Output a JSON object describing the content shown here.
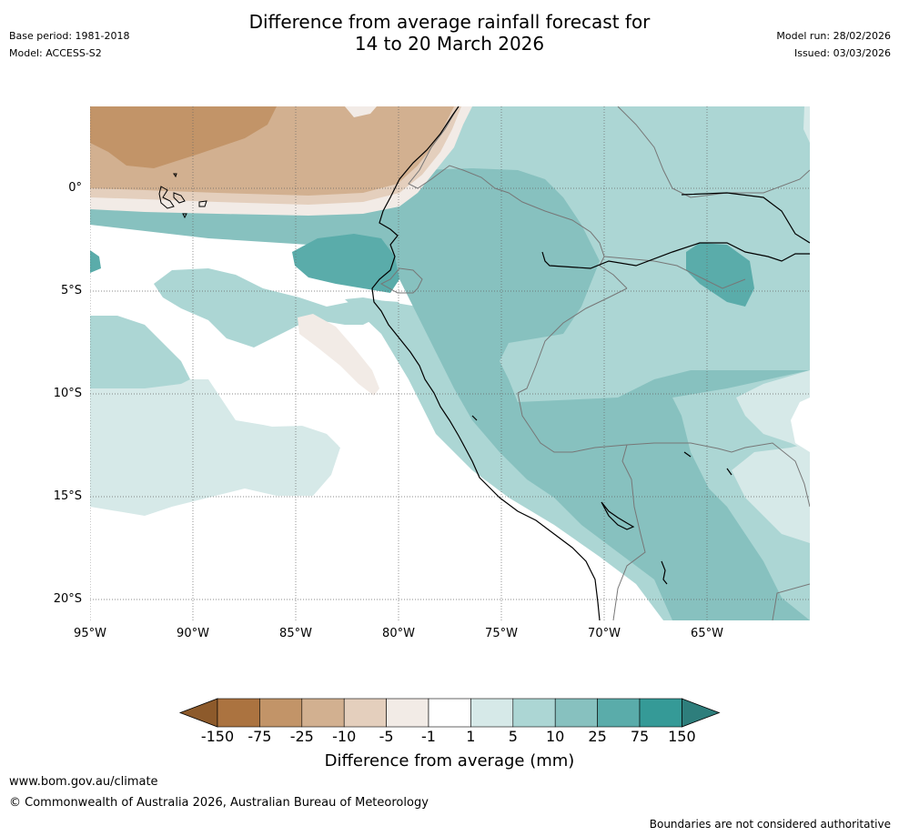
{
  "header": {
    "title_line1": "Difference from average rainfall forecast for",
    "title_line2": "14 to 20 March 2026",
    "base_period": "Base period: 1981-2018",
    "model": "Model: ACCESS-S2",
    "model_run": "Model run: 28/02/2026",
    "issued": "Issued: 03/03/2026"
  },
  "map": {
    "region": "Western South America / Eastern Pacific",
    "lat_labels": [
      "0°",
      "5°S",
      "10°S",
      "15°S",
      "20°S"
    ],
    "lon_labels": [
      "95°W",
      "90°W",
      "85°W",
      "80°W",
      "75°W",
      "70°W",
      "65°W"
    ]
  },
  "colorbar": {
    "title": "Difference from average (mm)",
    "ticks": [
      "-150",
      "-75",
      "-25",
      "-10",
      "-5",
      "-1",
      "1",
      "5",
      "10",
      "25",
      "75",
      "150"
    ],
    "colors": [
      "#8d5a2b",
      "#ab7340",
      "#c29468",
      "#d2b090",
      "#e4cfbd",
      "#f2ebe6",
      "#ffffff",
      "#d6e9e8",
      "#acd6d4",
      "#87c1bf",
      "#5aacaa",
      "#359a97",
      "#2e7e7c"
    ]
  },
  "footer": {
    "url": "www.bom.gov.au/climate",
    "copyright": "© Commonwealth of Australia 2026, Australian Bureau of Meteorology",
    "disclaimer": "Boundaries are not considered authoritative"
  }
}
